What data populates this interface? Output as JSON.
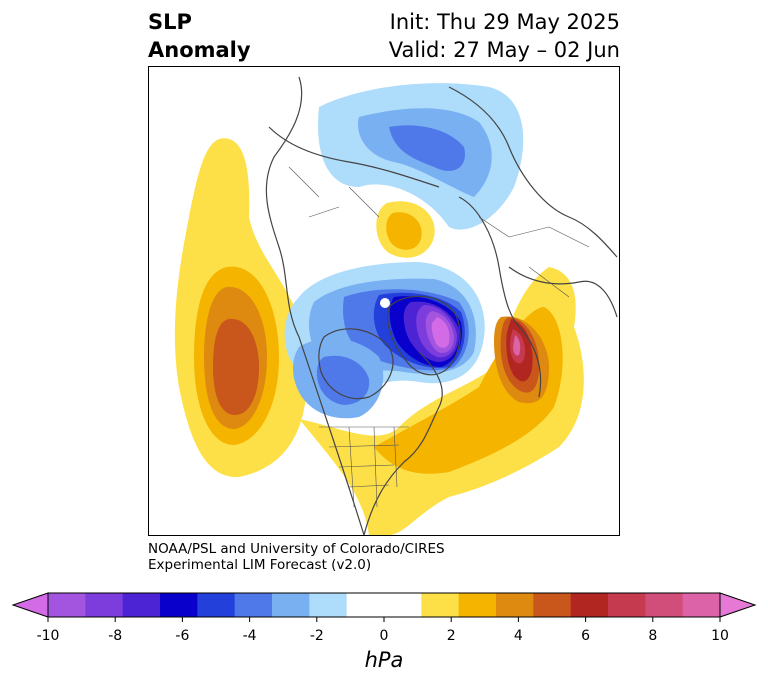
{
  "title": {
    "left_line1": "SLP",
    "left_line2": "Anomaly",
    "init": "Init: Thu 29 May 2025",
    "valid": "Valid: 27 May – 02 Jun"
  },
  "credit": {
    "line1": "NOAA/PSL and University of Colorado/CIRES",
    "line2": "Experimental LIM Forecast (v2.0)"
  },
  "colorbar": {
    "unit": "hPa",
    "colors": [
      "#d36be6",
      "#a355e0",
      "#7d3ddd",
      "#4c24d4",
      "#0a00cc",
      "#2340db",
      "#4f78e8",
      "#78b0f2",
      "#aedcfb",
      "#ffffff",
      "#ffffff",
      "#fde047",
      "#f4b400",
      "#de8a10",
      "#c9561a",
      "#b22622",
      "#c63a50",
      "#d24e7a",
      "#dc63a8",
      "#e678d6"
    ],
    "ticks": [
      "-10",
      "-8",
      "-6",
      "-4",
      "-2",
      "0",
      "2",
      "4",
      "6",
      "8",
      "10"
    ]
  }
}
